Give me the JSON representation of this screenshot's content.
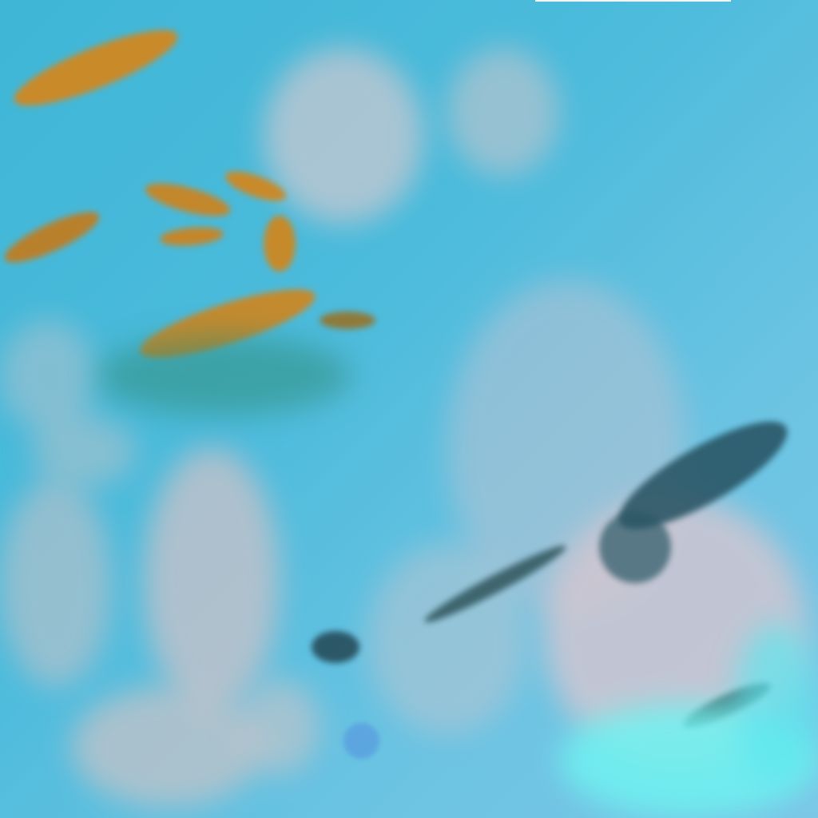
{
  "image": {
    "kind": "false-color satellite imagery",
    "colors": {
      "background": "#4cbbdc",
      "low_cloud": "#c9c4cc",
      "high_cloud_orange": "#c98a2a",
      "cloud_shadow_dark": "#1f4a5a",
      "bright_cyan": "#6ff2f0"
    }
  }
}
